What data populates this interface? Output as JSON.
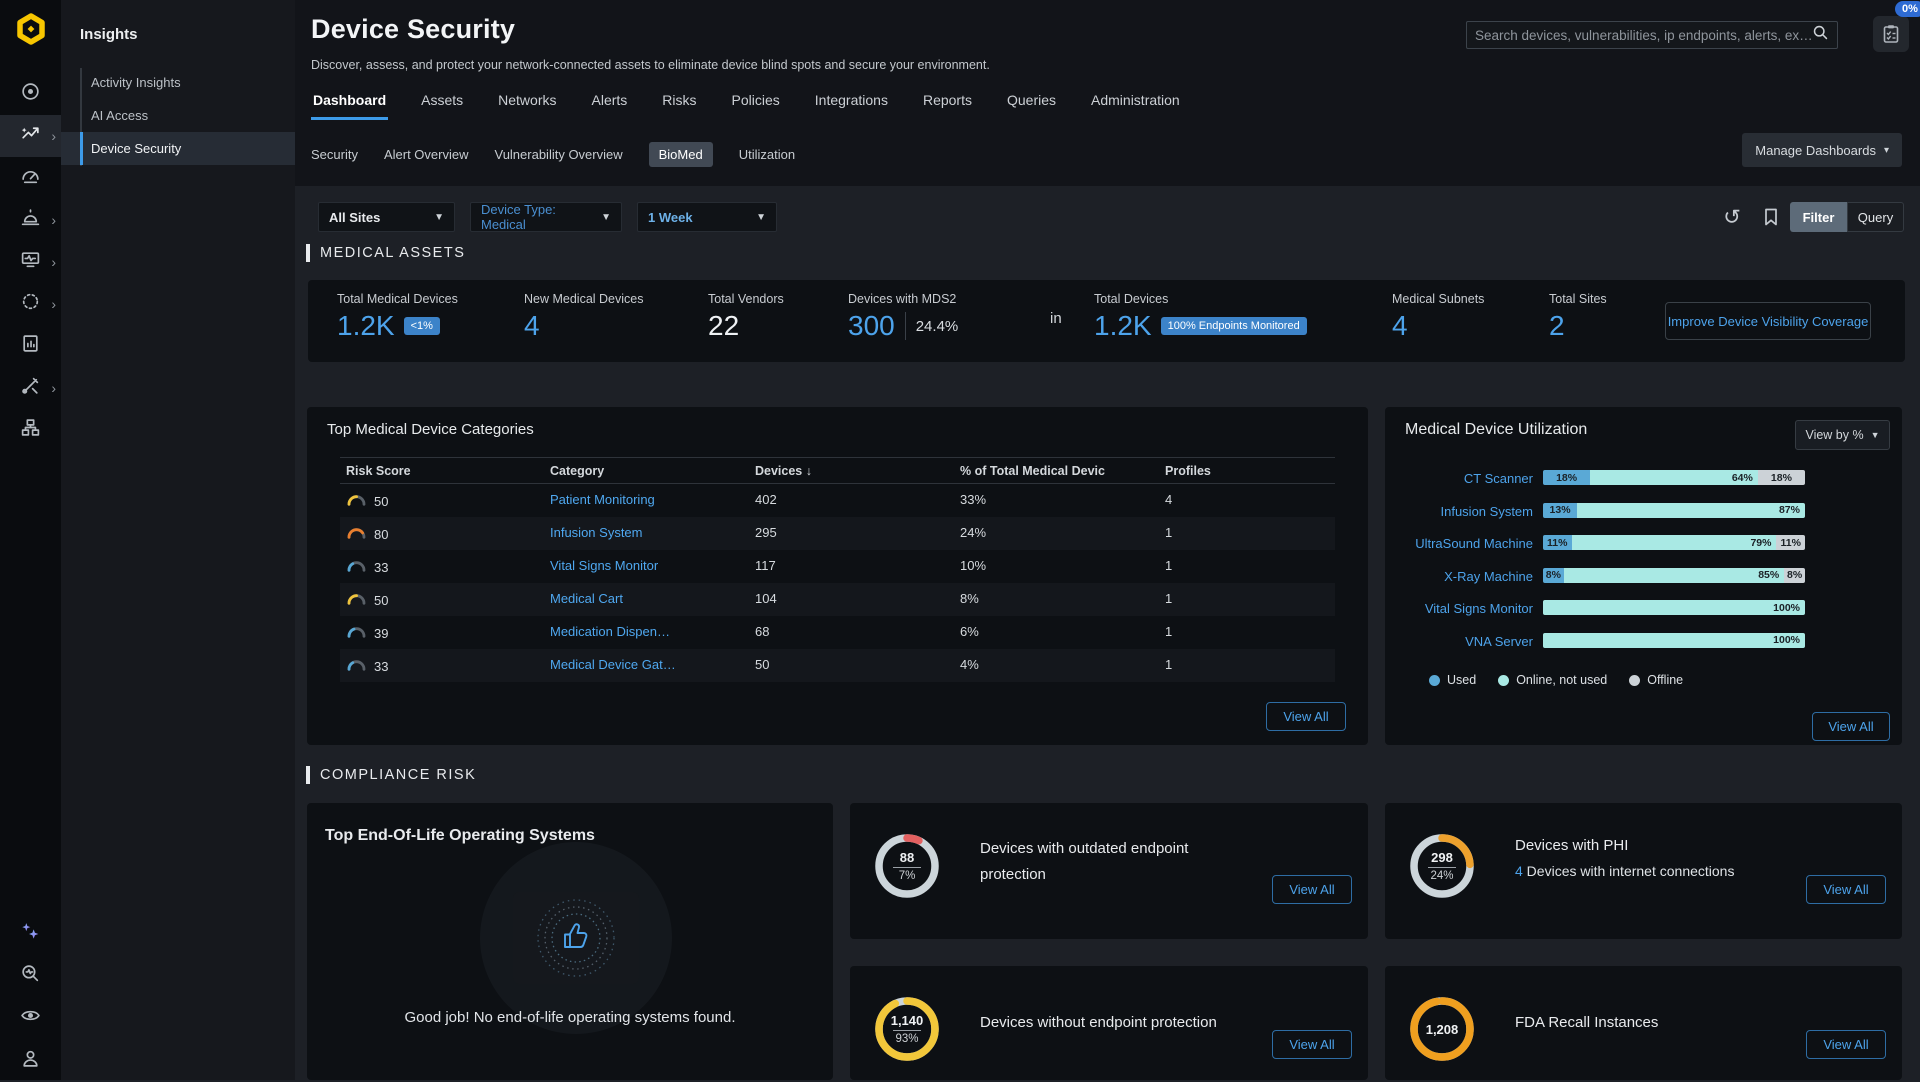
{
  "app": {
    "assist_badge": "0%"
  },
  "sidebar": {
    "rail": [
      {
        "icon": "radar",
        "expandable": false,
        "active": false
      },
      {
        "icon": "insights",
        "expandable": true,
        "active": true
      },
      {
        "icon": "gauge",
        "expandable": false,
        "active": false
      },
      {
        "icon": "alarm",
        "expandable": true,
        "active": false
      },
      {
        "icon": "device-monitor",
        "expandable": true,
        "active": false
      },
      {
        "icon": "policy-dots",
        "expandable": true,
        "active": false
      },
      {
        "icon": "reports",
        "expandable": false,
        "active": false
      },
      {
        "icon": "tools",
        "expandable": true,
        "active": false
      },
      {
        "icon": "network",
        "expandable": false,
        "active": false
      }
    ],
    "rail_bottom": [
      {
        "icon": "ai-sparkles"
      },
      {
        "icon": "investigate"
      },
      {
        "icon": "visibility-eye"
      },
      {
        "icon": "user"
      }
    ]
  },
  "insights_panel": {
    "title": "Insights",
    "items": [
      {
        "label": "Activity Insights",
        "active": false
      },
      {
        "label": "AI Access",
        "active": false
      },
      {
        "label": "Device Security",
        "active": true
      }
    ]
  },
  "header": {
    "title": "Device Security",
    "subtitle": "Discover, assess, and protect your network-connected assets to eliminate device blind spots and secure your environment.",
    "search_placeholder": "Search devices, vulnerabilities, ip endpoints, alerts, ex…",
    "tabs": [
      {
        "label": "Dashboard",
        "active": true
      },
      {
        "label": "Assets",
        "active": false
      },
      {
        "label": "Networks",
        "active": false
      },
      {
        "label": "Alerts",
        "active": false
      },
      {
        "label": "Risks",
        "active": false
      },
      {
        "label": "Policies",
        "active": false
      },
      {
        "label": "Integrations",
        "active": false
      },
      {
        "label": "Reports",
        "active": false
      },
      {
        "label": "Queries",
        "active": false
      },
      {
        "label": "Administration",
        "active": false
      }
    ],
    "subtabs": [
      {
        "label": "Security",
        "active": false
      },
      {
        "label": "Alert Overview",
        "active": false
      },
      {
        "label": "Vulnerability Overview",
        "active": false
      },
      {
        "label": "BioMed",
        "active": true
      },
      {
        "label": "Utilization",
        "active": false
      }
    ],
    "manage_dashboards_label": "Manage Dashboards"
  },
  "filters": {
    "site": "All Sites",
    "device_type": "Device Type: Medical",
    "time_range": "1 Week",
    "filter_label": "Filter",
    "query_label": "Query"
  },
  "medical_assets": {
    "section_title": "MEDICAL ASSETS",
    "stats": [
      {
        "type": "stat",
        "label": "Total Medical Devices",
        "value": "1.2K",
        "style": "blue",
        "badge": "<1%"
      },
      {
        "type": "stat",
        "label": "New Medical Devices",
        "value": "4",
        "style": "blue"
      },
      {
        "type": "stat",
        "label": "Total Vendors",
        "value": "22",
        "style": "white"
      },
      {
        "type": "stat",
        "label": "Devices with MDS2",
        "value": "300",
        "style": "blue",
        "secondary": "24.4%"
      },
      {
        "type": "connector",
        "value": "in"
      },
      {
        "type": "stat",
        "label": "Total Devices",
        "value": "1.2K",
        "style": "blue",
        "badge": "100% Endpoints Monitored"
      },
      {
        "type": "stat",
        "label": "Medical Subnets",
        "value": "4",
        "style": "blue"
      },
      {
        "type": "stat",
        "label": "Total Sites",
        "value": "2",
        "style": "blue"
      }
    ],
    "action_label": "Improve Device Visibility Coverage"
  },
  "categories_panel": {
    "title": "Top Medical Device Categories",
    "columns": [
      "Risk Score",
      "Category",
      "Devices",
      "% of Total Medical Devic",
      "Profiles"
    ],
    "sort_column_index": 2,
    "sort_icon": "↓",
    "rows": [
      {
        "risk": 50,
        "category": "Patient Monitoring",
        "devices": "402",
        "pct": "33%",
        "profiles": "4"
      },
      {
        "risk": 80,
        "category": "Infusion System",
        "devices": "295",
        "pct": "24%",
        "profiles": "1"
      },
      {
        "risk": 33,
        "category": "Vital Signs Monitor",
        "devices": "117",
        "pct": "10%",
        "profiles": "1"
      },
      {
        "risk": 50,
        "category": "Medical Cart",
        "devices": "104",
        "pct": "8%",
        "profiles": "1"
      },
      {
        "risk": 39,
        "category": "Medication Dispen…",
        "devices": "68",
        "pct": "6%",
        "profiles": "1"
      },
      {
        "risk": 33,
        "category": "Medical Device Gat…",
        "devices": "50",
        "pct": "4%",
        "profiles": "1"
      }
    ],
    "view_all_label": "View All"
  },
  "utilization_panel": {
    "title": "Medical Device Utilization",
    "view_by_label": "View by %",
    "chart": {
      "type": "stacked-bar-horizontal",
      "categories": [
        "CT Scanner",
        "Infusion System",
        "UltraSound Machine",
        "X-Ray Machine",
        "Vital Signs Monitor",
        "VNA Server"
      ],
      "series": [
        {
          "name": "Used",
          "color": "#5aa9d6",
          "values": [
            18,
            13,
            11,
            8,
            0,
            0
          ]
        },
        {
          "name": "Online, not used",
          "color": "#a9e9e4",
          "values": [
            64,
            87,
            79,
            85,
            100,
            100
          ]
        },
        {
          "name": "Offline",
          "color": "#ccd2d7",
          "values": [
            18,
            0,
            11,
            8,
            0,
            0
          ]
        }
      ]
    },
    "legend": [
      {
        "label": "Used",
        "color": "#5aa9d6"
      },
      {
        "label": "Online, not used",
        "color": "#a9e9e4"
      },
      {
        "label": "Offline",
        "color": "#ccd2d7"
      }
    ],
    "view_all_label": "View All"
  },
  "compliance": {
    "section_title": "COMPLIANCE RISK",
    "eol_card": {
      "title": "Top End-Of-Life Operating Systems",
      "message": "Good job! No end-of-life operating systems found."
    },
    "cards": [
      {
        "value": "88",
        "percent": "7%",
        "percent_num": 7,
        "color": "#e36060",
        "title": "Devices with outdated endpoint protection",
        "two_line": true,
        "view_all": "View All"
      },
      {
        "value": "298",
        "percent": "24%",
        "percent_num": 24,
        "color": "#eda12d",
        "title": "Devices with PHI",
        "sub_value": "4",
        "sub_text": " Devices with internet connections",
        "view_all": "View All"
      },
      {
        "value": "1,140",
        "percent": "93%",
        "percent_num": 93,
        "color": "#f2c73a",
        "title": "Devices without endpoint protection",
        "view_all": "View All"
      },
      {
        "value": "1,208",
        "percent": "",
        "percent_num": 97,
        "color": "#ef9f1f",
        "title": "FDA Recall Instances",
        "view_all": "View All"
      }
    ]
  }
}
